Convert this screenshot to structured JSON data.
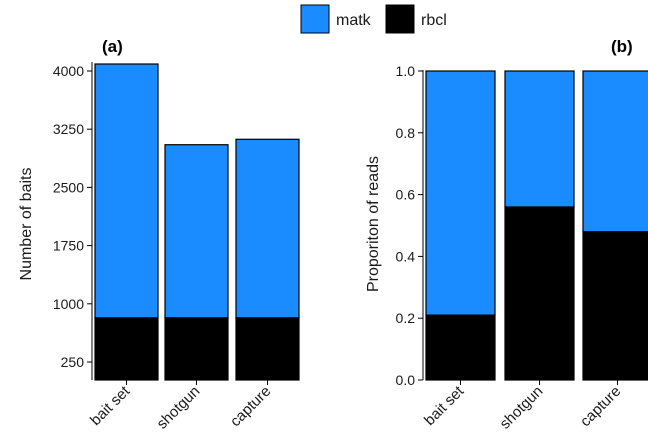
{
  "legend": {
    "items": [
      {
        "label": "matk",
        "color": "#1a8cff"
      },
      {
        "label": "rbcl",
        "color": "#000000"
      }
    ]
  },
  "chart_data": [
    {
      "type": "bar",
      "stacked": true,
      "panel_label": "(a)",
      "ylabel": "Number of baits",
      "xlabel": "",
      "categories": [
        "bait set",
        "shotgun",
        "capture"
      ],
      "series": [
        {
          "name": "rbcl",
          "color": "#000000",
          "values": [
            820,
            820,
            820
          ]
        },
        {
          "name": "matk",
          "color": "#1a8cff",
          "values": [
            3270,
            2230,
            2300
          ]
        }
      ],
      "totals": [
        4090,
        3050,
        3120
      ],
      "ylim": [
        0,
        4100
      ],
      "yticks": [
        250,
        1000,
        1750,
        2500,
        3250,
        4000
      ],
      "grid": false
    },
    {
      "type": "bar",
      "stacked": true,
      "panel_label": "(b)",
      "ylabel": "Proporiton of reads",
      "xlabel": "",
      "categories": [
        "bait set",
        "shotgun",
        "capture"
      ],
      "series": [
        {
          "name": "rbcl",
          "color": "#000000",
          "values": [
            0.21,
            0.56,
            0.48
          ]
        },
        {
          "name": "matk",
          "color": "#1a8cff",
          "values": [
            0.79,
            0.44,
            0.52
          ]
        }
      ],
      "ylim": [
        0,
        1.0
      ],
      "yticks": [
        0.0,
        0.2,
        0.4,
        0.6,
        0.8,
        1.0
      ],
      "ytick_labels": [
        "0.0",
        "0.2",
        "0.4",
        "0.6",
        "0.8",
        "1.0"
      ],
      "grid": false
    }
  ]
}
